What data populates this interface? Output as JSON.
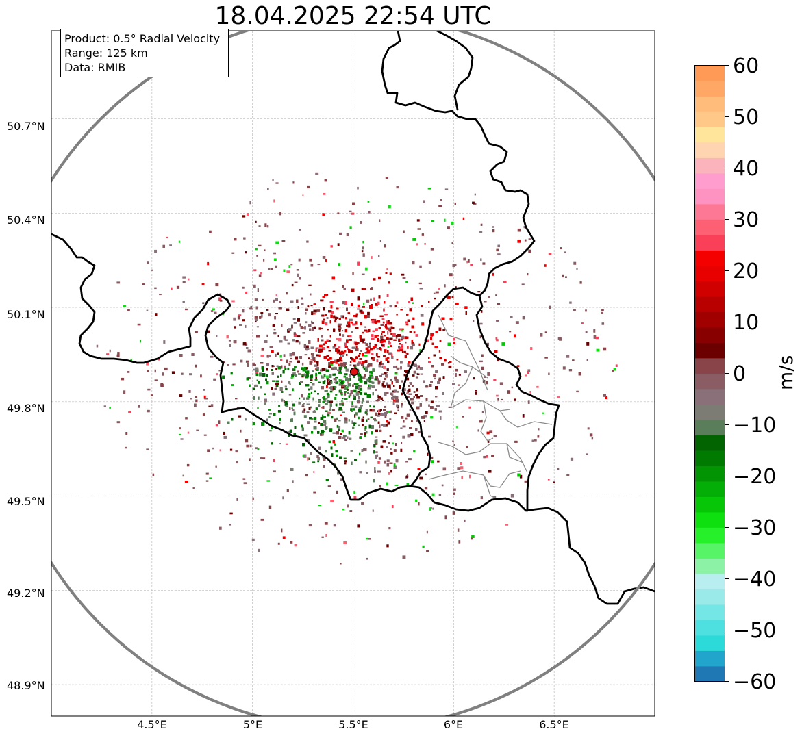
{
  "title": "18.04.2025 22:54 UTC",
  "info_box": {
    "product": "Product: 0.5° Radial Velocity",
    "range": "Range: 125 km",
    "source": "Data: RMIB"
  },
  "axes": {
    "lat_labels": [
      "50.7°N",
      "50.4°N",
      "50.1°N",
      "49.8°N",
      "49.5°N",
      "49.2°N",
      "48.9°N"
    ],
    "lon_labels": [
      "4.5°E",
      "5°E",
      "5.5°E",
      "6°E",
      "6.5°E"
    ],
    "lat_range": [
      48.8,
      50.98
    ],
    "lon_range": [
      4.0,
      7.0
    ],
    "grid": true
  },
  "radar_site": {
    "lon": 5.505,
    "lat": 49.914,
    "marker_color": "#e01010"
  },
  "range_ring_color": "#808080",
  "colorbar": {
    "unit": "m/s",
    "min": -60,
    "max": 60,
    "tick_labels": [
      "60",
      "50",
      "40",
      "30",
      "20",
      "10",
      "0",
      "−10",
      "−20",
      "−30",
      "−40",
      "−50",
      "−60"
    ],
    "colors": [
      "#1f77b4",
      "#22a5cc",
      "#2ddada",
      "#4ee0e0",
      "#74e6e6",
      "#9aeaea",
      "#b8eef0",
      "#8cf2a6",
      "#56f466",
      "#26f02a",
      "#0ee010",
      "#07c608",
      "#04ae06",
      "#029402",
      "#007a00",
      "#016400",
      "#5a7e5a",
      "#7c7c74",
      "#8a7078",
      "#8a5c64",
      "#884448",
      "#6c0000",
      "#880000",
      "#a00000",
      "#b80000",
      "#d00000",
      "#e80000",
      "#f40000",
      "#fa4058",
      "#fc6072",
      "#fd7894",
      "#fe92c0",
      "#ff9ece",
      "#fcb4bc",
      "#ffd4b0",
      "#ffe49c",
      "#ffc888",
      "#ffbc7a",
      "#ffa866",
      "#ff9a56"
    ]
  },
  "chart_data": {
    "type": "heatmap",
    "title": "18.04.2025 22:54 UTC",
    "colorbar_label": "m/s",
    "value_range": [
      -60,
      60
    ],
    "x_tick_labels": [
      "4.5°E",
      "5°E",
      "5.5°E",
      "6°E",
      "6.5°E"
    ],
    "y_tick_labels": [
      "50.7°N",
      "50.4°N",
      "50.1°N",
      "49.8°N",
      "49.5°N",
      "49.2°N",
      "48.9°N"
    ],
    "grid": true
  }
}
